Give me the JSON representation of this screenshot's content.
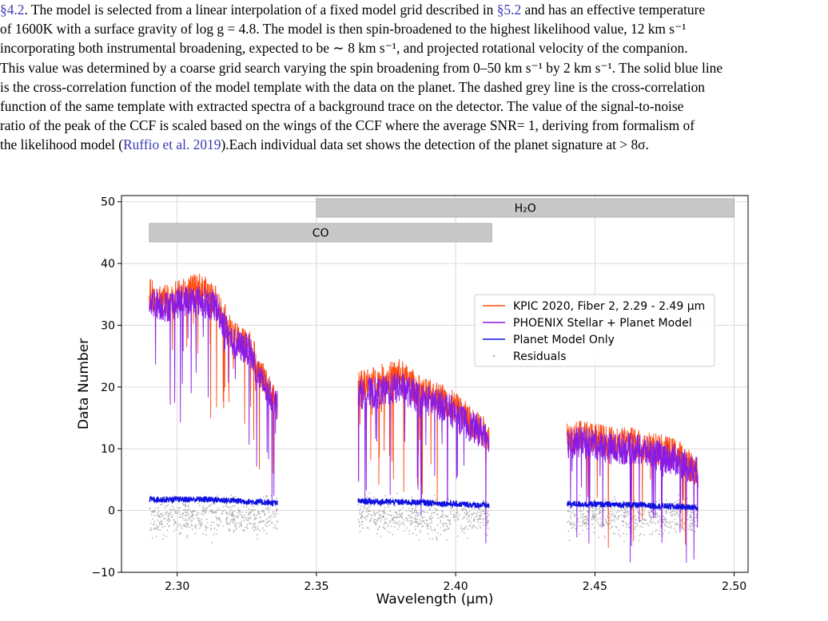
{
  "caption": {
    "line1_ref": "§4.2",
    "line1_rest": ". The model is selected from a linear interpolation of a fixed model grid described in ",
    "line1_ref2": "§5.2",
    "line1_tail": " and has an effective temperature",
    "line2": "of 1600K with a surface gravity of log g = 4.8. The model is then spin-broadened to the highest likelihood value, 12 km s⁻¹",
    "line3": "incorporating both instrumental broadening, expected to be ∼ 8 km s⁻¹, and projected rotational velocity of the companion.",
    "line4": "This value was determined by a coarse grid search varying the spin broadening from 0–50 km s⁻¹ by 2 km s⁻¹. The solid blue line",
    "line5": "is the cross-correlation function of the model template with the data on the planet. The dashed grey line is the cross-correlation",
    "line6": "function of the same template with extracted spectra of a background trace on the detector. The value of the signal-to-noise",
    "line7": "ratio of the peak of the CCF is scaled based on the wings of the CCF where the average SNR= 1, deriving from formalism of",
    "line8_pre": "the likelihood model (",
    "line8_ref": "Ruffio et al. 2019",
    "line8_post": ").Each individual data set shows the detection of the planet signature at > 8σ."
  },
  "chart_data": {
    "type": "line",
    "xlabel": "Wavelength (μm)",
    "ylabel": "Data Number",
    "xlim": [
      2.28,
      2.505
    ],
    "ylim": [
      -10,
      51
    ],
    "grid": true,
    "legend_placement": "center-right",
    "x_ticks": [
      "2.30",
      "2.35",
      "2.40",
      "2.45",
      "2.50"
    ],
    "x_tick_values": [
      2.3,
      2.35,
      2.4,
      2.45,
      2.5
    ],
    "y_ticks": [
      "−10",
      "0",
      "10",
      "20",
      "30",
      "40",
      "50"
    ],
    "y_tick_values": [
      -10,
      0,
      10,
      20,
      30,
      40,
      50
    ],
    "bands": [
      {
        "label": "H₂O",
        "x_start": 2.35,
        "x_end": 2.5,
        "y_low": 47.5,
        "y_high": 50.5
      },
      {
        "label": "CO",
        "x_start": 2.29,
        "x_end": 2.413,
        "y_low": 43.5,
        "y_high": 46.5
      }
    ],
    "series": [
      {
        "name": "KPIC 2020, Fiber 2, 2.29 - 2.49 μm",
        "color": "#ff4a10",
        "segments": [
          {
            "x": [
              2.29,
              2.296,
              2.302,
              2.308,
              2.314,
              2.32,
              2.326,
              2.33,
              2.336
            ],
            "y": [
              35,
              34,
              35,
              36,
              34,
              28,
              27,
              22,
              17
            ]
          },
          {
            "x": [
              2.365,
              2.372,
              2.38,
              2.388,
              2.396,
              2.404,
              2.412
            ],
            "y": [
              20,
              21,
              22,
              19,
              18,
              15,
              12
            ]
          },
          {
            "x": [
              2.44,
              2.448,
              2.456,
              2.464,
              2.472,
              2.48,
              2.487
            ],
            "y": [
              12,
              12,
              11,
              11,
              10,
              9,
              6
            ]
          }
        ]
      },
      {
        "name": "PHOENIX Stellar + Planet Model",
        "color": "#8a1be6",
        "segments": [
          {
            "x": [
              2.29,
              2.296,
              2.302,
              2.308,
              2.314,
              2.32,
              2.326,
              2.33,
              2.336
            ],
            "y": [
              34,
              33,
              34,
              34,
              33,
              27,
              26,
              21,
              17
            ]
          },
          {
            "x": [
              2.365,
              2.372,
              2.38,
              2.388,
              2.396,
              2.404,
              2.412
            ],
            "y": [
              19,
              19,
              20,
              18,
              17,
              14,
              12
            ]
          },
          {
            "x": [
              2.44,
              2.448,
              2.456,
              2.464,
              2.472,
              2.48,
              2.487
            ],
            "y": [
              11,
              11,
              10,
              10,
              9,
              8,
              6
            ]
          }
        ]
      },
      {
        "name": "Planet Model Only",
        "color": "#1010e0",
        "segments": [
          {
            "x": [
              2.29,
              2.312,
              2.336
            ],
            "y": [
              1.8,
              1.8,
              1.2
            ]
          },
          {
            "x": [
              2.365,
              2.388,
              2.412
            ],
            "y": [
              1.5,
              1.3,
              0.8
            ]
          },
          {
            "x": [
              2.44,
              2.464,
              2.487
            ],
            "y": [
              1.1,
              0.9,
              0.5
            ]
          }
        ]
      },
      {
        "name": "Residuals",
        "color": "#a0a0a0",
        "segments": [
          {
            "x": [
              2.29,
              2.336
            ],
            "y": [
              -1,
              -1
            ]
          },
          {
            "x": [
              2.365,
              2.412
            ],
            "y": [
              -1,
              -1
            ]
          },
          {
            "x": [
              2.44,
              2.487
            ],
            "y": [
              -1,
              -1
            ]
          }
        ]
      }
    ]
  }
}
